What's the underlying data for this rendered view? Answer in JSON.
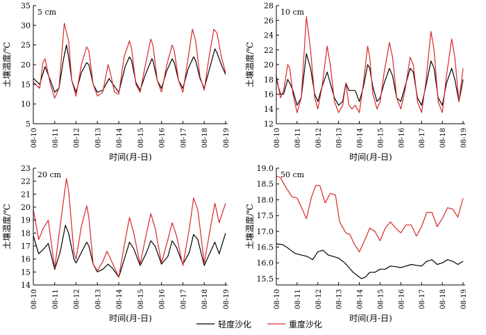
{
  "legend": {
    "items": [
      {
        "label": "轻度沙化",
        "color": "#000000"
      },
      {
        "label": "重度沙化",
        "color": "#d62728"
      }
    ],
    "position": "bottom-center"
  },
  "chart_data": [
    {
      "type": "line",
      "title": "5 cm",
      "xlabel": "时间(月-日)",
      "ylabel": "土壤温度/℃",
      "ylim": [
        5,
        35
      ],
      "yticks": [
        5,
        10,
        15,
        20,
        25,
        30,
        35
      ],
      "xlim": [
        10,
        19.1
      ],
      "xticks": [
        "08-10",
        "08-11",
        "08-12",
        "08-13",
        "08-14",
        "08-15",
        "08-16",
        "08-17",
        "08-18",
        "08-19"
      ],
      "grid": false,
      "series": [
        {
          "name": "轻度沙化",
          "color": "#000000",
          "x": [
            10.0,
            10.3,
            10.55,
            10.8,
            11.0,
            11.2,
            11.4,
            11.55,
            11.65,
            11.8,
            12.0,
            12.25,
            12.5,
            12.6,
            12.8,
            13.0,
            13.25,
            13.55,
            13.6,
            13.8,
            14.0,
            14.3,
            14.5,
            14.6,
            14.8,
            15.0,
            15.25,
            15.55,
            15.6,
            15.8,
            16.0,
            16.25,
            16.5,
            16.6,
            16.8,
            17.0,
            17.25,
            17.5,
            17.6,
            17.8,
            18.0,
            18.3,
            18.5,
            18.6,
            18.8,
            19.0
          ],
          "y": [
            16.5,
            15.0,
            19.5,
            16.0,
            13.0,
            14.0,
            21.0,
            25.0,
            22.0,
            16.0,
            13.0,
            18.0,
            20.5,
            20.0,
            15.0,
            13.0,
            13.5,
            16.5,
            16.0,
            14.5,
            13.0,
            19.5,
            22.0,
            21.0,
            15.5,
            13.5,
            17.5,
            21.5,
            21.0,
            16.0,
            14.0,
            18.5,
            21.5,
            20.5,
            16.0,
            14.0,
            19.0,
            22.0,
            21.0,
            16.5,
            14.0,
            20.0,
            24.0,
            23.0,
            20.0,
            17.5
          ]
        },
        {
          "name": "重度沙化",
          "color": "#d62728",
          "x": [
            10.0,
            10.3,
            10.45,
            10.55,
            10.8,
            11.0,
            11.2,
            11.45,
            11.65,
            11.8,
            12.0,
            12.25,
            12.5,
            12.6,
            12.8,
            13.0,
            13.25,
            13.5,
            13.6,
            13.8,
            14.0,
            14.25,
            14.5,
            14.6,
            14.8,
            15.0,
            15.25,
            15.5,
            15.6,
            15.8,
            16.0,
            16.25,
            16.5,
            16.6,
            16.8,
            17.0,
            17.2,
            17.45,
            17.6,
            17.8,
            18.0,
            18.2,
            18.45,
            18.6,
            18.8,
            19.0
          ],
          "y": [
            15.5,
            14.0,
            20.5,
            21.5,
            15.0,
            11.5,
            14.0,
            30.5,
            26.0,
            16.0,
            12.0,
            20.0,
            24.5,
            23.5,
            15.0,
            12.0,
            13.0,
            20.0,
            18.0,
            13.0,
            12.5,
            22.0,
            26.0,
            24.0,
            15.0,
            13.0,
            20.0,
            26.5,
            25.0,
            16.0,
            13.0,
            20.0,
            25.0,
            23.5,
            16.0,
            13.0,
            20.0,
            29.0,
            26.0,
            17.0,
            13.5,
            21.0,
            29.0,
            28.0,
            22.0,
            18.0
          ]
        }
      ]
    },
    {
      "type": "line",
      "title": "10 cm",
      "xlabel": "时间(月-日)",
      "ylabel": "土壤温度/℃",
      "ylim": [
        12,
        28
      ],
      "yticks": [
        12,
        14,
        16,
        18,
        20,
        22,
        24,
        26,
        28
      ],
      "xlim": [
        10,
        19.1
      ],
      "xticks": [
        "08-10",
        "08-11",
        "08-12",
        "08-13",
        "08-14",
        "08-15",
        "08-16",
        "08-17",
        "08-18",
        "08-19"
      ],
      "grid": false,
      "series": [
        {
          "name": "轻度沙化",
          "color": "#000000",
          "x": [
            10.0,
            10.2,
            10.35,
            10.55,
            10.65,
            10.8,
            11.0,
            11.2,
            11.45,
            11.65,
            11.85,
            12.0,
            12.2,
            12.45,
            12.6,
            12.8,
            13.0,
            13.2,
            13.35,
            13.5,
            13.65,
            13.8,
            14.0,
            14.2,
            14.4,
            14.5,
            14.65,
            14.85,
            15.0,
            15.2,
            15.45,
            15.6,
            15.8,
            16.0,
            16.2,
            16.45,
            16.6,
            16.8,
            17.0,
            17.2,
            17.45,
            17.6,
            17.8,
            18.0,
            18.2,
            18.45,
            18.6,
            18.8,
            19.0
          ],
          "y": [
            18.0,
            16.0,
            16.0,
            18.0,
            17.5,
            16.5,
            14.5,
            15.5,
            21.5,
            19.5,
            16.0,
            15.0,
            17.0,
            19.0,
            17.5,
            15.5,
            14.5,
            15.0,
            17.5,
            16.5,
            16.5,
            16.5,
            15.0,
            17.0,
            20.0,
            19.5,
            17.0,
            15.0,
            15.5,
            17.5,
            19.5,
            18.5,
            15.5,
            15.0,
            17.0,
            19.5,
            19.0,
            15.5,
            14.5,
            17.0,
            20.5,
            19.5,
            15.5,
            14.5,
            17.5,
            19.5,
            18.0,
            15.0,
            18.0
          ]
        },
        {
          "name": "重度沙化",
          "color": "#d62728",
          "x": [
            10.0,
            10.2,
            10.35,
            10.55,
            10.65,
            10.8,
            11.0,
            11.2,
            11.45,
            11.65,
            11.85,
            12.0,
            12.2,
            12.45,
            12.6,
            12.8,
            13.0,
            13.2,
            13.35,
            13.5,
            13.65,
            13.8,
            14.0,
            14.2,
            14.4,
            14.5,
            14.65,
            14.85,
            15.0,
            15.2,
            15.45,
            15.6,
            15.8,
            16.0,
            16.2,
            16.45,
            16.6,
            16.8,
            17.0,
            17.2,
            17.45,
            17.6,
            17.8,
            18.0,
            18.2,
            18.45,
            18.6,
            18.8,
            19.0
          ],
          "y": [
            18.5,
            15.5,
            16.5,
            20.0,
            19.5,
            16.0,
            13.5,
            15.5,
            26.5,
            22.0,
            15.5,
            14.0,
            17.0,
            22.5,
            20.0,
            15.0,
            13.5,
            14.5,
            17.5,
            14.5,
            14.0,
            14.5,
            13.5,
            17.5,
            22.5,
            21.0,
            16.0,
            14.0,
            15.0,
            19.0,
            23.0,
            21.0,
            15.5,
            14.0,
            16.5,
            21.0,
            20.0,
            15.0,
            13.5,
            17.5,
            24.5,
            22.0,
            15.0,
            13.5,
            18.5,
            23.5,
            21.0,
            15.0,
            19.5
          ]
        }
      ]
    },
    {
      "type": "line",
      "title": "20 cm",
      "xlabel": "时间(月-日)",
      "ylabel": "土壤温度/℃",
      "ylim": [
        14,
        23
      ],
      "yticks": [
        14,
        15,
        16,
        17,
        18,
        19,
        20,
        21,
        22,
        23
      ],
      "xlim": [
        10,
        19.1
      ],
      "xticks": [
        "08-10",
        "08-11",
        "08-12",
        "08-13",
        "08-14",
        "08-15",
        "08-16",
        "08-17",
        "08-18",
        "08-19"
      ],
      "grid": false,
      "series": [
        {
          "name": "轻度沙化",
          "color": "#000000",
          "x": [
            10.0,
            10.25,
            10.5,
            10.7,
            11.0,
            11.25,
            11.5,
            11.65,
            11.9,
            12.0,
            12.25,
            12.5,
            12.6,
            12.8,
            13.0,
            13.25,
            13.5,
            13.7,
            14.0,
            14.3,
            14.5,
            14.7,
            15.0,
            15.3,
            15.5,
            15.7,
            16.0,
            16.3,
            16.5,
            16.7,
            17.0,
            17.3,
            17.5,
            17.7,
            18.0,
            18.3,
            18.5,
            18.7,
            19.0
          ],
          "y": [
            17.8,
            16.4,
            16.8,
            17.2,
            15.2,
            16.5,
            18.6,
            18.0,
            16.0,
            15.7,
            16.5,
            17.3,
            17.0,
            15.6,
            15.0,
            15.2,
            15.6,
            15.3,
            14.6,
            16.2,
            17.3,
            16.8,
            15.5,
            16.5,
            17.4,
            17.0,
            15.6,
            16.2,
            17.4,
            16.9,
            15.6,
            16.5,
            17.9,
            17.5,
            15.5,
            16.6,
            17.3,
            16.4,
            18.0
          ]
        },
        {
          "name": "重度沙化",
          "color": "#d62728",
          "x": [
            10.0,
            10.25,
            10.45,
            10.7,
            11.0,
            11.25,
            11.55,
            11.65,
            11.9,
            12.0,
            12.25,
            12.5,
            12.6,
            12.8,
            13.0,
            13.25,
            13.45,
            13.7,
            14.0,
            14.25,
            14.5,
            14.7,
            15.0,
            15.3,
            15.5,
            15.7,
            16.0,
            16.3,
            16.5,
            16.7,
            17.0,
            17.3,
            17.5,
            17.7,
            18.0,
            18.3,
            18.5,
            18.7,
            19.0
          ],
          "y": [
            19.8,
            17.5,
            18.3,
            19.0,
            15.3,
            18.5,
            22.2,
            21.3,
            16.5,
            16.0,
            18.5,
            20.1,
            19.2,
            15.6,
            15.1,
            15.8,
            16.6,
            15.7,
            14.6,
            17.0,
            19.2,
            18.0,
            15.6,
            18.0,
            19.5,
            18.4,
            15.7,
            17.5,
            18.8,
            17.8,
            15.5,
            18.3,
            20.7,
            19.8,
            15.7,
            18.5,
            20.3,
            18.8,
            20.3
          ]
        }
      ]
    },
    {
      "type": "line",
      "title": "50 cm",
      "xlabel": "时间(月-日)",
      "ylabel": "土壤温度/℃",
      "ylim": [
        15.3,
        19.0
      ],
      "yticks": [
        15.5,
        16.0,
        16.5,
        17.0,
        17.5,
        18.0,
        18.5,
        19.0
      ],
      "xlim": [
        10,
        19.1
      ],
      "xticks": [
        "08-10",
        "08-11",
        "08-12",
        "08-13",
        "08-14",
        "08-15",
        "08-16",
        "08-17",
        "08-18",
        "08-19"
      ],
      "grid": false,
      "series": [
        {
          "name": "轻度沙化",
          "color": "#000000",
          "x": [
            10.0,
            10.3,
            10.6,
            10.9,
            11.2,
            11.5,
            11.75,
            12.0,
            12.25,
            12.5,
            12.75,
            13.0,
            13.3,
            13.5,
            13.7,
            13.9,
            14.1,
            14.3,
            14.5,
            14.75,
            15.0,
            15.25,
            15.5,
            15.75,
            16.0,
            16.25,
            16.5,
            16.75,
            17.0,
            17.25,
            17.5,
            17.75,
            18.0,
            18.25,
            18.5,
            18.75,
            19.0
          ],
          "y": [
            16.6,
            16.58,
            16.45,
            16.3,
            16.25,
            16.2,
            16.1,
            16.35,
            16.4,
            16.25,
            16.2,
            16.15,
            16.0,
            15.85,
            15.7,
            15.6,
            15.5,
            15.55,
            15.7,
            15.7,
            15.8,
            15.8,
            15.9,
            15.88,
            15.85,
            15.9,
            15.95,
            15.92,
            15.9,
            16.05,
            16.1,
            15.95,
            16.0,
            16.1,
            16.05,
            15.95,
            16.05
          ]
        },
        {
          "name": "重度沙化",
          "color": "#d62728",
          "x": [
            10.0,
            10.2,
            10.45,
            10.75,
            11.0,
            11.25,
            11.45,
            11.7,
            11.9,
            12.1,
            12.35,
            12.6,
            12.85,
            13.05,
            13.35,
            13.55,
            13.75,
            14.0,
            14.25,
            14.5,
            14.75,
            15.0,
            15.25,
            15.5,
            15.75,
            16.0,
            16.25,
            16.5,
            16.75,
            17.0,
            17.25,
            17.5,
            17.75,
            18.0,
            18.25,
            18.5,
            18.75,
            19.0
          ],
          "y": [
            18.75,
            18.7,
            18.4,
            18.1,
            18.05,
            17.7,
            17.4,
            18.1,
            18.45,
            18.45,
            17.9,
            18.2,
            18.15,
            17.3,
            16.95,
            16.9,
            16.6,
            16.35,
            16.7,
            17.1,
            17.0,
            16.7,
            17.1,
            17.3,
            17.1,
            16.95,
            17.2,
            17.2,
            16.85,
            17.15,
            17.6,
            17.6,
            17.15,
            17.4,
            17.75,
            17.7,
            17.45,
            18.05
          ]
        }
      ]
    }
  ]
}
